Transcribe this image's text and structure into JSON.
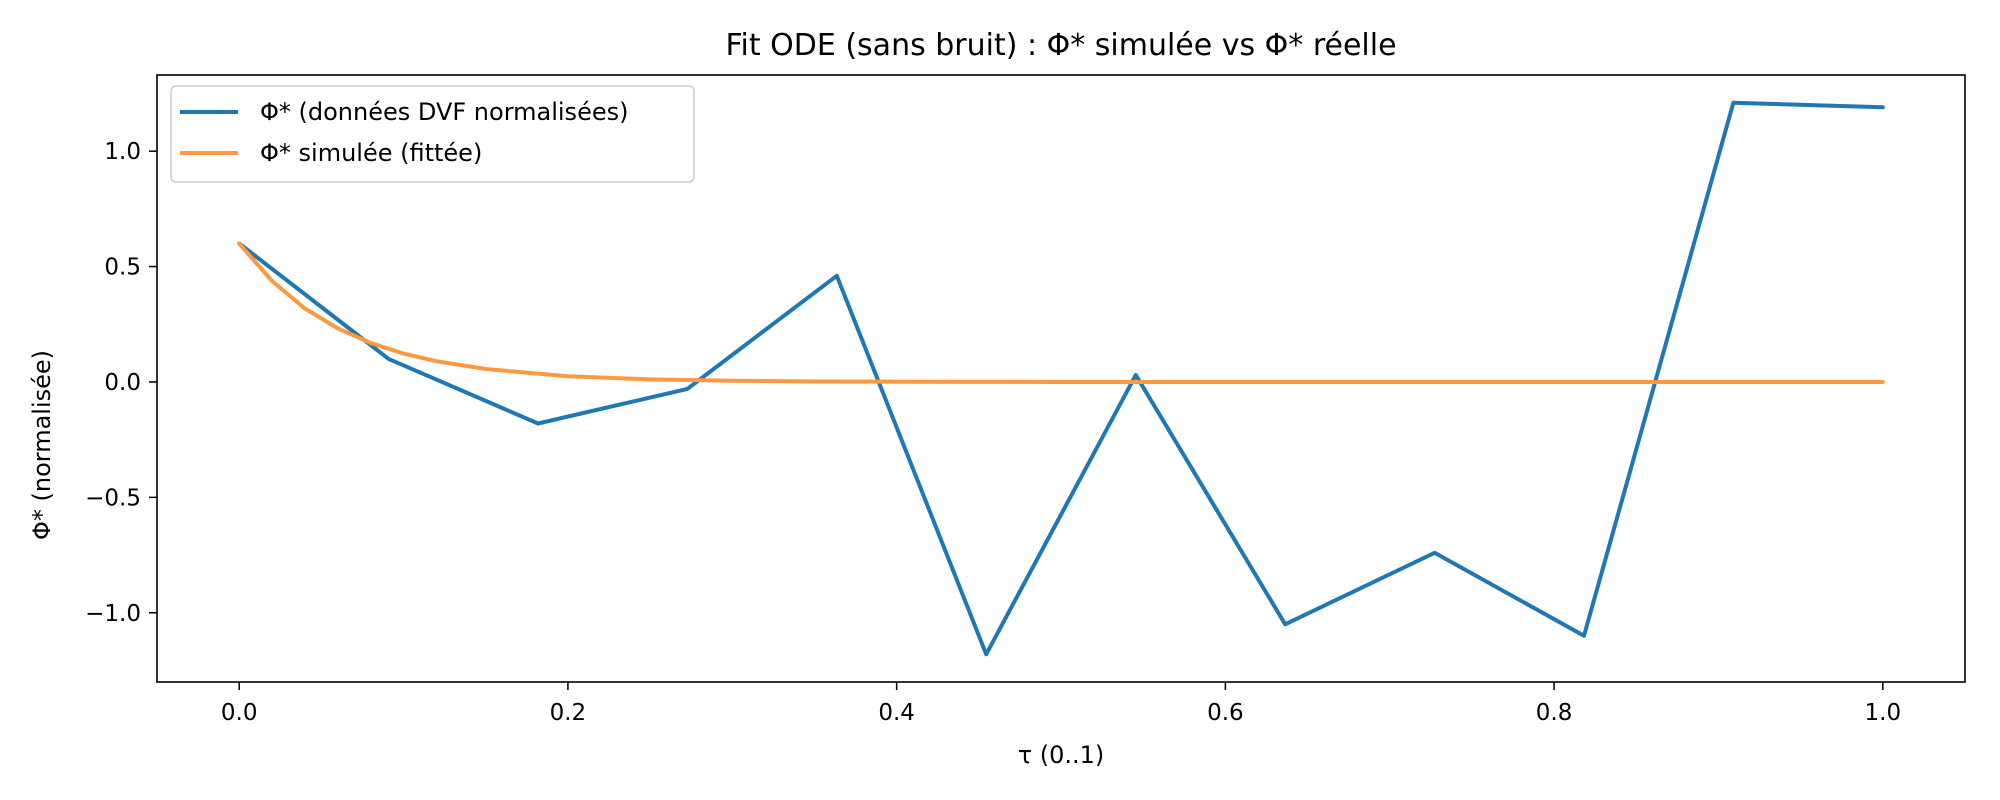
{
  "chart_data": {
    "type": "line",
    "title": "Fit ODE (sans bruit) : Φ* simulée vs Φ* réelle",
    "xlabel": "τ (0..1)",
    "ylabel": "Φ* (normalisée)",
    "xlim": [
      -0.05,
      1.05
    ],
    "ylim": [
      -1.3,
      1.33
    ],
    "xticks": [
      0.0,
      0.2,
      0.4,
      0.6,
      0.8,
      1.0
    ],
    "xtick_labels": [
      "0.0",
      "0.2",
      "0.4",
      "0.6",
      "0.8",
      "1.0"
    ],
    "yticks": [
      -1.0,
      -0.5,
      0.0,
      0.5,
      1.0
    ],
    "ytick_labels": [
      "−1.0",
      "−0.5",
      "0.0",
      "0.5",
      "1.0"
    ],
    "grid": false,
    "legend_position": "top-left",
    "series": [
      {
        "name": "Φ* (données DVF normalisées)",
        "color": "#1f77b4",
        "x": [
          0.0,
          0.0909,
          0.1818,
          0.2727,
          0.3636,
          0.4545,
          0.5455,
          0.6364,
          0.7273,
          0.8182,
          0.9091,
          1.0
        ],
        "y": [
          0.6,
          0.1,
          -0.18,
          -0.03,
          0.46,
          -1.18,
          0.03,
          -1.05,
          -0.74,
          -1.1,
          1.21,
          1.19
        ]
      },
      {
        "name": "Φ* simulée (fittée)",
        "color": "#ff983e",
        "x": [
          0.0,
          0.02,
          0.04,
          0.06,
          0.08,
          0.1,
          0.12,
          0.15,
          0.2,
          0.25,
          0.3,
          0.35,
          0.4,
          0.5,
          0.6,
          0.7,
          0.8,
          0.9,
          1.0
        ],
        "y": [
          0.6,
          0.437,
          0.318,
          0.232,
          0.169,
          0.123,
          0.09,
          0.056,
          0.025,
          0.011,
          0.005,
          0.002,
          0.001,
          0.0,
          0.0,
          0.0,
          0.0,
          0.0,
          0.0
        ]
      }
    ]
  }
}
